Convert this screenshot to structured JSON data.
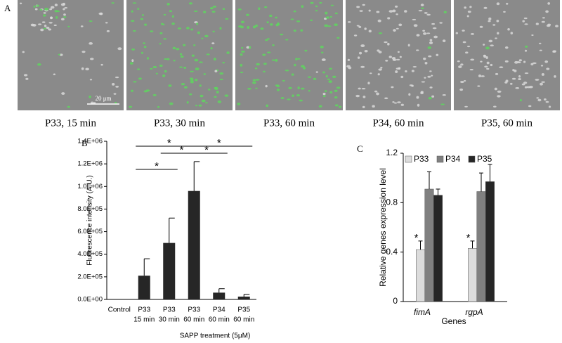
{
  "figure": {
    "panel_labels": [
      "A",
      "B",
      "C"
    ],
    "image_captions": [
      "P33, 15 min",
      "P33, 30 min",
      "P33, 60 min",
      "P34, 60 min",
      "P35, 60 min"
    ],
    "scale_bar": "20 μm"
  },
  "chart_data": [
    {
      "type": "bar",
      "color": "#262626",
      "categories": [
        [
          "Control"
        ],
        [
          "P33",
          "15 min"
        ],
        [
          "P33",
          "30 min"
        ],
        [
          "P33",
          "60 min"
        ],
        [
          "P34",
          "60 min"
        ],
        [
          "P35",
          "60 min"
        ]
      ],
      "values": [
        0,
        210000,
        500000,
        960000,
        60000,
        25000
      ],
      "errors": [
        null,
        150000,
        220000,
        260000,
        35000,
        20000
      ],
      "ylim": [
        0,
        1400000
      ],
      "yticks": [
        {
          "value": 0,
          "label": "0.0E+00"
        },
        {
          "value": 200000,
          "label": "2.0E+05"
        },
        {
          "value": 400000,
          "label": "4.0E+05"
        },
        {
          "value": 600000,
          "label": "6.0E+05"
        },
        {
          "value": 800000,
          "label": "8.0E+05"
        },
        {
          "value": 1000000,
          "label": "1.0E+06"
        },
        {
          "value": 1200000,
          "label": "1.2E+06"
        },
        {
          "value": 1400000,
          "label": "1.4E+06"
        }
      ],
      "y_label": "Fluorescence intensity (A.U.)",
      "x_label": "SAPP treatment (5μM)",
      "significance": [
        {
          "from": 1,
          "to": 2,
          "label": "*"
        },
        {
          "from": 2,
          "to": 3,
          "label": "*"
        },
        {
          "from": 1,
          "to": 3,
          "label": "*"
        },
        {
          "from": 3,
          "to": 4,
          "label": "*"
        },
        {
          "from": 3,
          "to": 5,
          "label": "*"
        }
      ]
    },
    {
      "type": "grouped-bar",
      "categories": [
        "fimA",
        "rgpA"
      ],
      "series": [
        {
          "name": "P33",
          "color": "#dcdcdc",
          "values": [
            0.42,
            0.43
          ],
          "errors": [
            0.07,
            0.06
          ]
        },
        {
          "name": "P34",
          "color": "#808080",
          "values": [
            0.91,
            0.89
          ],
          "errors": [
            0.14,
            0.15
          ]
        },
        {
          "name": "P35",
          "color": "#262626",
          "values": [
            0.86,
            0.97
          ],
          "errors": [
            0.05,
            0.14
          ]
        }
      ],
      "ylim": [
        0,
        1.2
      ],
      "yticks": [
        0,
        0.4,
        0.8,
        1.2
      ],
      "y_label": "Relative genes expression level",
      "x_label": "Genes",
      "significance": [
        {
          "series": 0,
          "category": 0,
          "label": "*"
        },
        {
          "series": 0,
          "category": 1,
          "label": "*"
        }
      ]
    }
  ]
}
